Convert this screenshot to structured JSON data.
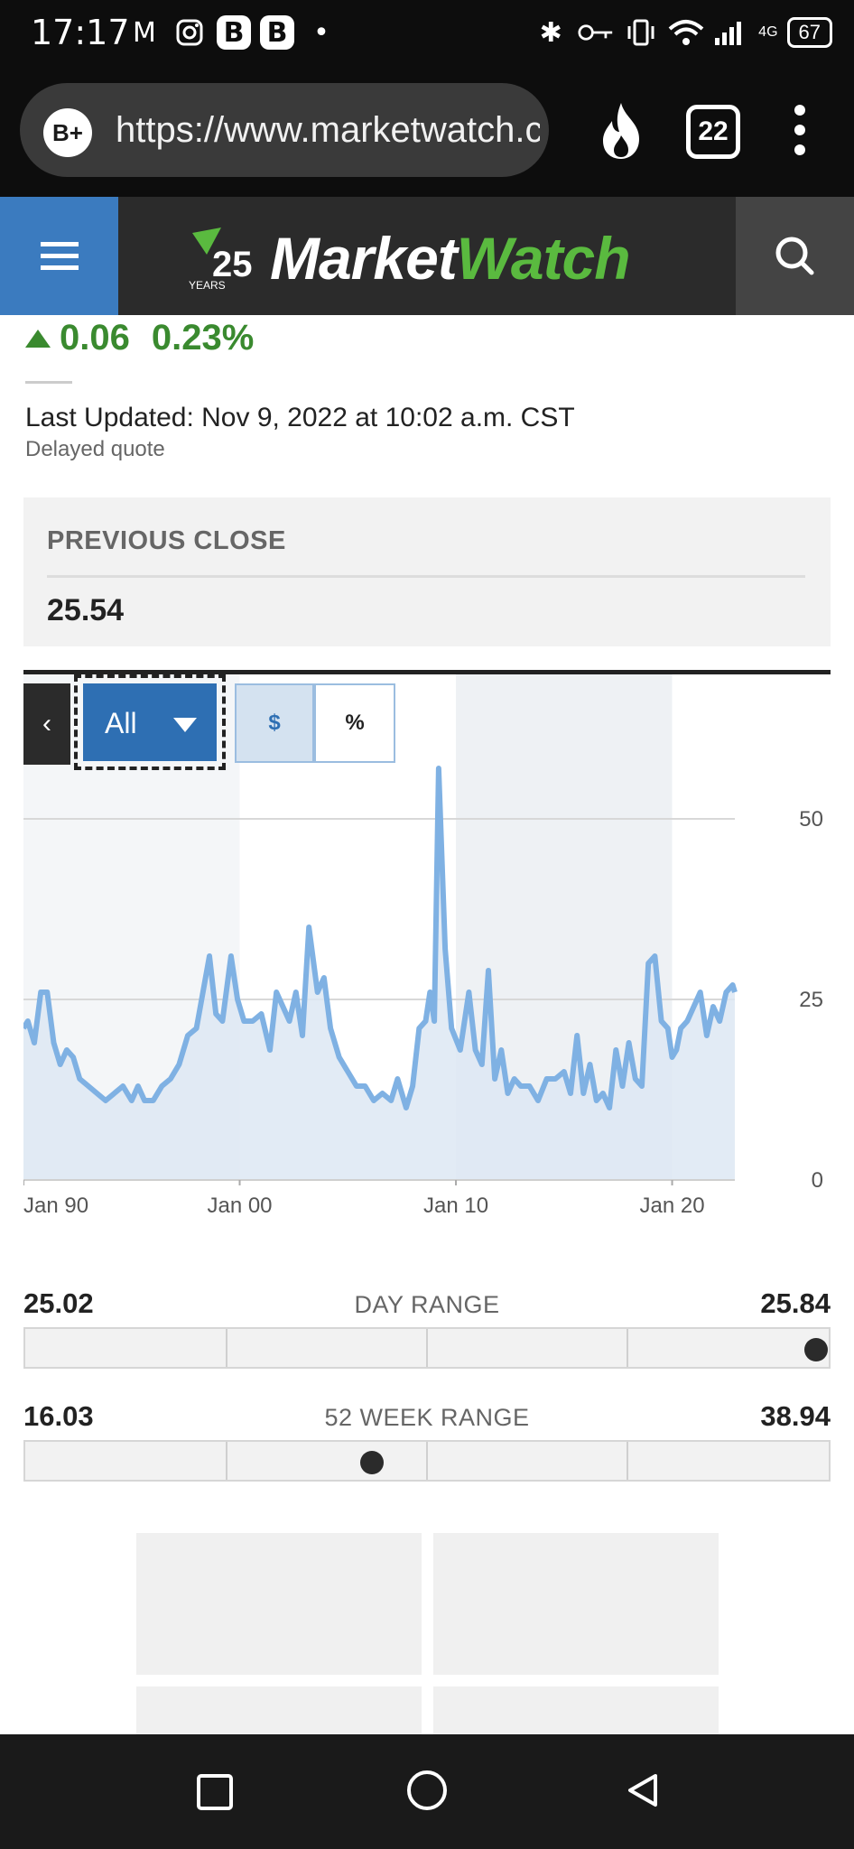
{
  "status_bar": {
    "time": "17:17",
    "network": "4G",
    "battery": "67",
    "left_icons": [
      "gmail-icon",
      "instagram-icon",
      "b-app-icon",
      "b-alert-icon",
      "dot-icon"
    ],
    "right_icons": [
      "bluetooth-icon",
      "key-icon",
      "vibrate-icon",
      "wifi-icon",
      "signal-icon",
      "battery-icon"
    ]
  },
  "browser": {
    "badge": "B+",
    "url": "https://www.marketwatch.com",
    "tab_count": "22"
  },
  "site": {
    "logo_market": "Market",
    "logo_watch": "Watch",
    "logo_years": "YEARS",
    "logo_number": "25",
    "brand_color": "#5aba3f",
    "menu_color": "#3b7bbf"
  },
  "quote": {
    "change": "0.06",
    "change_percent": "0.23%",
    "change_color": "#3a8a2f",
    "last_updated": "Last Updated: Nov 9, 2022 at 10:02 a.m. CST",
    "delayed": "Delayed quote",
    "previous_close_label": "PREVIOUS CLOSE",
    "previous_close": "25.54"
  },
  "chart_controls": {
    "range": "All",
    "dollar": "$",
    "percent": "%"
  },
  "chart_data": {
    "type": "area",
    "x_ticks": [
      "Jan 90",
      "Jan 00",
      "Jan 10",
      "Jan 20"
    ],
    "y_ticks": [
      "50",
      "25",
      "0"
    ],
    "ylim": [
      0,
      60
    ],
    "xlim": [
      1990,
      2022.9
    ],
    "grid": "horizontal",
    "line_color": "#7fb1e3",
    "fill_color": "#dde8f3",
    "x": [
      1990.0,
      1990.2,
      1990.5,
      1990.8,
      1991.1,
      1991.4,
      1991.7,
      1992.0,
      1992.3,
      1992.6,
      1993.0,
      1993.4,
      1993.8,
      1994.2,
      1994.6,
      1995.0,
      1995.3,
      1995.6,
      1996.0,
      1996.4,
      1996.8,
      1997.2,
      1997.6,
      1998.0,
      1998.3,
      1998.6,
      1998.9,
      1999.2,
      1999.6,
      1999.9,
      2000.2,
      2000.6,
      2001.0,
      2001.4,
      2001.7,
      2002.0,
      2002.3,
      2002.6,
      2002.9,
      2003.2,
      2003.6,
      2003.9,
      2004.2,
      2004.6,
      2005.0,
      2005.4,
      2005.8,
      2006.2,
      2006.6,
      2007.0,
      2007.3,
      2007.7,
      2008.0,
      2008.3,
      2008.6,
      2008.8,
      2009.0,
      2009.2,
      2009.5,
      2009.8,
      2010.2,
      2010.6,
      2010.9,
      2011.2,
      2011.5,
      2011.8,
      2012.1,
      2012.4,
      2012.7,
      2013.0,
      2013.4,
      2013.8,
      2014.2,
      2014.6,
      2015.0,
      2015.3,
      2015.6,
      2015.9,
      2016.2,
      2016.5,
      2016.8,
      2017.1,
      2017.4,
      2017.7,
      2018.0,
      2018.3,
      2018.6,
      2018.9,
      2019.2,
      2019.5,
      2019.8,
      2020.0,
      2020.2,
      2020.4,
      2020.7,
      2021.0,
      2021.3,
      2021.6,
      2021.9,
      2022.2,
      2022.5,
      2022.8,
      2022.9
    ],
    "values": [
      21,
      22,
      19,
      26,
      26,
      19,
      16,
      18,
      17,
      14,
      13,
      12,
      11,
      12,
      13,
      11,
      13,
      11,
      11,
      13,
      14,
      16,
      20,
      21,
      26,
      31,
      23,
      22,
      31,
      25,
      22,
      22,
      23,
      18,
      26,
      24,
      22,
      26,
      20,
      35,
      26,
      28,
      21,
      17,
      15,
      13,
      13,
      11,
      12,
      11,
      14,
      10,
      13,
      21,
      22,
      26,
      22,
      57,
      32,
      21,
      18,
      26,
      18,
      16,
      29,
      14,
      18,
      12,
      14,
      13,
      13,
      11,
      14,
      14,
      15,
      12,
      20,
      12,
      16,
      11,
      12,
      10,
      18,
      13,
      19,
      14,
      13,
      30,
      31,
      22,
      21,
      17,
      18,
      21,
      22,
      24,
      26,
      20,
      24,
      22,
      26,
      27,
      26
    ]
  },
  "day_range": {
    "label": "DAY RANGE",
    "low": "25.02",
    "high": "25.84",
    "position": 0.98
  },
  "week52_range": {
    "label": "52 WEEK RANGE",
    "low": "16.03",
    "high": "38.94",
    "position": 0.43
  }
}
